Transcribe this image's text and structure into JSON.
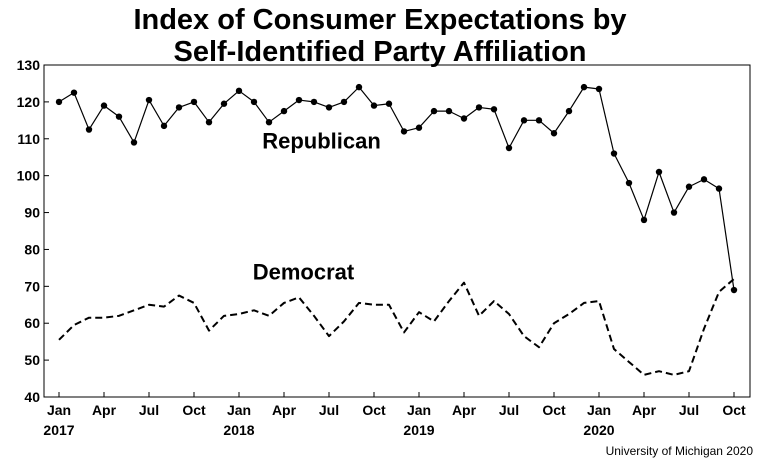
{
  "chart_data": {
    "type": "line",
    "title": [
      "Index of Consumer Expectations by",
      "Self-Identified Party Affiliation"
    ],
    "xlabel": "",
    "ylabel": "",
    "ylim": [
      40,
      130
    ],
    "yticks": [
      40,
      50,
      60,
      70,
      80,
      90,
      100,
      110,
      120,
      130
    ],
    "xticks": [
      {
        "month": 0,
        "label": "Jan",
        "year": "2017"
      },
      {
        "month": 3,
        "label": "Apr",
        "year": ""
      },
      {
        "month": 6,
        "label": "Jul",
        "year": ""
      },
      {
        "month": 9,
        "label": "Oct",
        "year": ""
      },
      {
        "month": 12,
        "label": "Jan",
        "year": "2018"
      },
      {
        "month": 15,
        "label": "Apr",
        "year": ""
      },
      {
        "month": 18,
        "label": "Jul",
        "year": ""
      },
      {
        "month": 21,
        "label": "Oct",
        "year": ""
      },
      {
        "month": 24,
        "label": "Jan",
        "year": "2019"
      },
      {
        "month": 27,
        "label": "Apr",
        "year": ""
      },
      {
        "month": 30,
        "label": "Jul",
        "year": ""
      },
      {
        "month": 33,
        "label": "Oct",
        "year": ""
      },
      {
        "month": 36,
        "label": "Jan",
        "year": "2020"
      },
      {
        "month": 39,
        "label": "Apr",
        "year": ""
      },
      {
        "month": 42,
        "label": "Jul",
        "year": ""
      },
      {
        "month": 45,
        "label": "Oct",
        "year": ""
      }
    ],
    "series": [
      {
        "name": "Republican",
        "style": "solid-with-markers",
        "values": [
          120,
          122.5,
          112.5,
          119,
          116,
          109,
          120.5,
          113.5,
          118.5,
          120,
          114.5,
          119.5,
          123,
          120,
          114.5,
          117.5,
          120.5,
          120,
          118.5,
          120,
          124,
          119,
          119.5,
          112,
          113,
          117.5,
          117.5,
          115.5,
          118.5,
          118,
          107.5,
          115,
          115,
          111.5,
          117.5,
          124,
          123.5,
          106,
          98,
          88,
          101,
          90,
          97,
          99,
          96.5,
          69
        ]
      },
      {
        "name": "Democrat",
        "style": "dashed",
        "values": [
          55.5,
          59.5,
          61.5,
          61.5,
          62,
          63.5,
          65,
          64.5,
          67.5,
          65.5,
          58,
          62,
          62.5,
          63.5,
          62,
          65.5,
          67,
          62,
          56.5,
          60.5,
          65.5,
          65,
          65,
          57.5,
          63,
          60.5,
          66,
          71,
          62,
          66,
          62.5,
          56.5,
          53.5,
          60,
          62.5,
          65.5,
          66,
          53,
          49.5,
          46,
          47,
          46,
          47,
          58.5,
          68.5,
          72
        ]
      }
    ],
    "annotations": [
      {
        "text": "Republican",
        "month": 17.5,
        "y": 107.3
      },
      {
        "text": "Democrat",
        "month": 16.3,
        "y": 71.8
      }
    ],
    "source": "University of Michigan 2020",
    "grid": false
  }
}
